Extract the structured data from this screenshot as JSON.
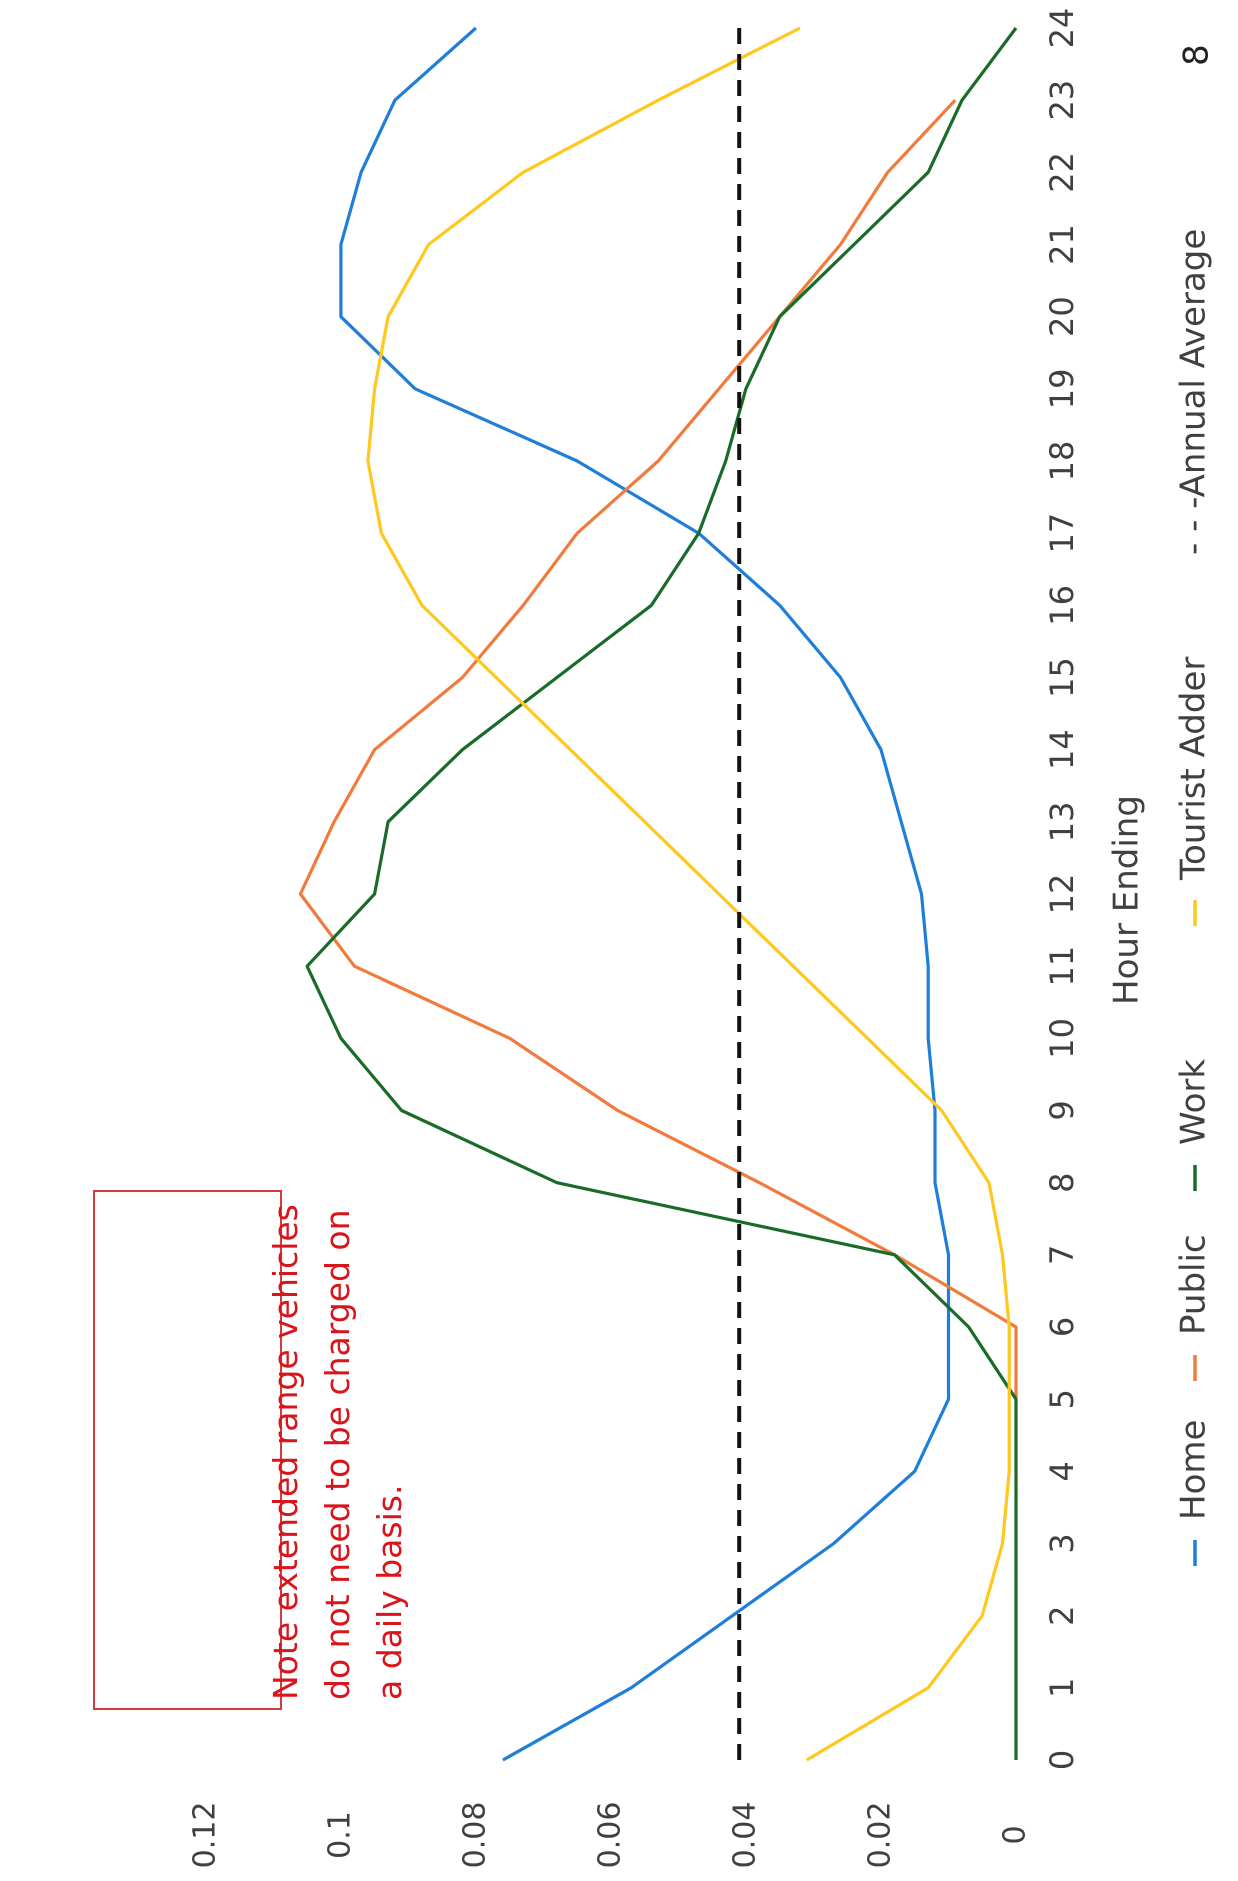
{
  "chart_data": {
    "type": "line",
    "xlabel": "Hour Ending",
    "ylabel": "",
    "x": [
      0,
      1,
      2,
      3,
      4,
      5,
      6,
      7,
      8,
      9,
      10,
      11,
      12,
      13,
      14,
      15,
      16,
      17,
      18,
      19,
      20,
      21,
      22,
      23,
      24
    ],
    "xticks": [
      "0",
      "1",
      "2",
      "3",
      "4",
      "5",
      "6",
      "7",
      "8",
      "9",
      "10",
      "11",
      "12",
      "13",
      "14",
      "15",
      "16",
      "17",
      "18",
      "19",
      "20",
      "21",
      "22",
      "23",
      "24"
    ],
    "ylim": [
      0,
      0.12
    ],
    "yticks": [
      "0",
      "0.02",
      "0.04",
      "0.06",
      "0.08",
      "0.1",
      "0.12"
    ],
    "series": [
      {
        "name": "Home",
        "color": "#1f7ed8",
        "values": [
          0.076,
          0.057,
          0.042,
          0.027,
          0.015,
          0.01,
          0.01,
          0.01,
          0.012,
          0.012,
          0.013,
          0.013,
          0.014,
          0.017,
          0.02,
          0.026,
          0.035,
          0.047,
          0.065,
          0.089,
          0.1,
          0.1,
          0.097,
          0.092,
          0.08
        ]
      },
      {
        "name": "Public",
        "color": "#f07b3c",
        "values": [
          null,
          null,
          null,
          null,
          null,
          0.0,
          0.0,
          0.018,
          0.038,
          0.059,
          0.075,
          0.098,
          0.106,
          0.101,
          0.095,
          0.082,
          0.073,
          0.065,
          0.053,
          0.044,
          0.035,
          0.026,
          0.019,
          0.009,
          null
        ]
      },
      {
        "name": "Work",
        "color": "#1a6b28",
        "values": [
          0.0,
          0.0,
          0.0,
          0.0,
          0.0,
          0.0,
          0.007,
          0.018,
          0.068,
          0.091,
          0.1,
          0.105,
          0.095,
          0.093,
          0.082,
          0.068,
          0.054,
          0.047,
          0.043,
          0.04,
          0.035,
          0.024,
          0.013,
          0.008,
          0.0
        ]
      },
      {
        "name": "Tourist Adder",
        "color": "#ffc81e",
        "values": [
          0.031,
          0.013,
          0.005,
          0.002,
          0.001,
          0.001,
          0.001,
          0.002,
          0.004,
          0.011,
          0.022,
          0.033,
          0.044,
          0.055,
          0.066,
          0.077,
          0.088,
          0.094,
          0.096,
          0.095,
          0.093,
          0.087,
          0.073,
          0.053,
          0.032
        ]
      },
      {
        "name": "Annual Average",
        "color": "#111111",
        "dashed": true,
        "values": [
          0.041,
          0.041,
          0.041,
          0.041,
          0.041,
          0.041,
          0.041,
          0.041,
          0.041,
          0.041,
          0.041,
          0.041,
          0.041,
          0.041,
          0.041,
          0.041,
          0.041,
          0.041,
          0.041,
          0.041,
          0.041,
          0.041,
          0.041,
          0.041,
          0.041
        ]
      }
    ],
    "legend_labels": [
      "Home",
      "Public",
      "Work",
      "Tourist Adder",
      "- - -Annual Average"
    ],
    "note": "Note extended range vehicles do not need to be charged on a daily basis.",
    "page_number": "8"
  }
}
